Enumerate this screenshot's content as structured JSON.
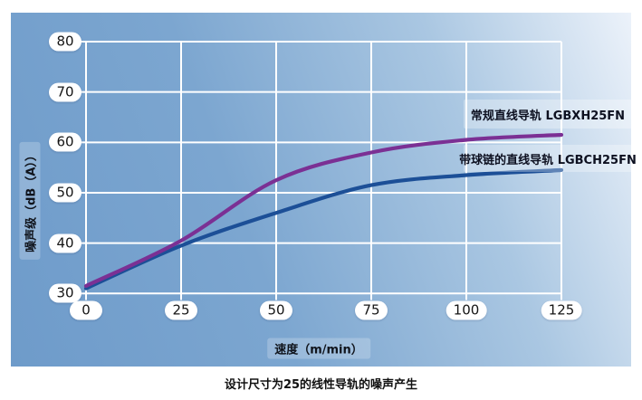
{
  "caption": "设计尺寸为25的线性导轨的噪声产生",
  "chart_data": {
    "type": "line",
    "title": "",
    "xlabel": "速度（m/min）",
    "ylabel": "噪声级（dB（A））",
    "x_ticks": [
      0,
      25,
      50,
      75,
      100,
      125
    ],
    "y_ticks": [
      80,
      70,
      60,
      50,
      40,
      30
    ],
    "xlim": [
      0,
      125
    ],
    "ylim": [
      30,
      80
    ],
    "grid": true,
    "legend_position": "inside-right",
    "categories": [
      0,
      25,
      50,
      75,
      100,
      125
    ],
    "series": [
      {
        "name": "常规直线导轨 LGBXH25FN",
        "color": "#7b3094",
        "values": [
          31.5,
          40.5,
          52.5,
          58,
          60.5,
          61.5
        ]
      },
      {
        "name": "带球链的直线导轨 LGBCH25FN",
        "color": "#1c4f97",
        "values": [
          31,
          39.5,
          46,
          51.5,
          53.5,
          54.5
        ]
      }
    ],
    "colors": {
      "grid": "#ffffff",
      "tick_pill_bg": "#ffffff",
      "tick_text": "#151515",
      "panel_gradient_start": "#6e9bca",
      "panel_gradient_end": "#ecf2fa"
    }
  }
}
